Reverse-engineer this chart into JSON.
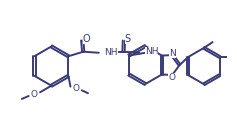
{
  "bg_color": "#ffffff",
  "line_color": "#3a3a7a",
  "line_width": 1.4,
  "font_size": 6.5,
  "font_color": "#3a3a7a",
  "xlim": [
    0,
    10.5
  ],
  "ylim": [
    0,
    6.2
  ]
}
